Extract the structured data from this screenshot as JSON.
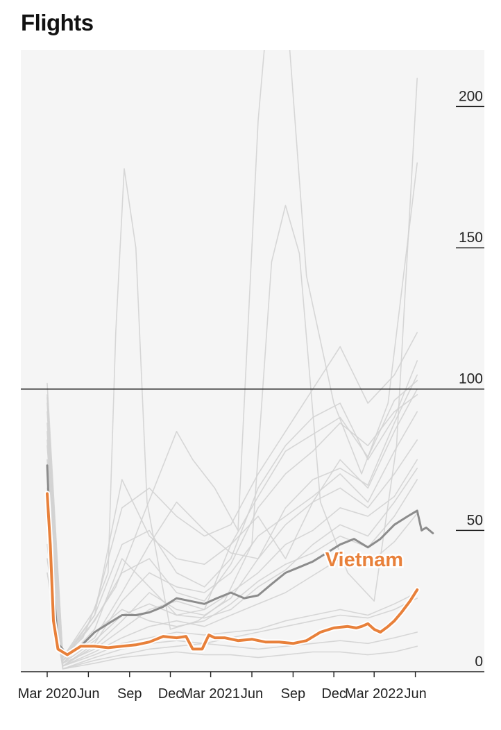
{
  "title": "Flights",
  "colors": {
    "background": "#f5f5f5",
    "highlight": "#e8803a",
    "average": "#8c8c8c",
    "other": "#d3d3d3",
    "reference": "#222222"
  },
  "chart_data": {
    "type": "line",
    "title": "Flights",
    "xlabel": "",
    "ylabel": "",
    "ylim": [
      0,
      220
    ],
    "yticks": [
      0,
      50,
      100,
      150,
      200
    ],
    "xticks": [
      "Mar 2020",
      "Jun",
      "Sep",
      "Dec",
      "Mar 2021",
      "Jun",
      "Sep",
      "Dec",
      "Mar 2022",
      "Jun"
    ],
    "x_domain": [
      "2020-03-01",
      "2022-07-15"
    ],
    "reference_line": 100,
    "grid": false,
    "legend": "none",
    "series": [
      {
        "name": "Vietnam",
        "role": "highlight",
        "x": [
          "2020-03-01",
          "2020-03-08",
          "2020-03-15",
          "2020-03-25",
          "2020-04-15",
          "2020-05-15",
          "2020-06-15",
          "2020-07-15",
          "2020-08-15",
          "2020-09-15",
          "2020-10-15",
          "2020-11-15",
          "2020-12-15",
          "2021-01-05",
          "2021-01-20",
          "2021-02-10",
          "2021-02-25",
          "2021-03-10",
          "2021-04-01",
          "2021-05-01",
          "2021-06-01",
          "2021-07-01",
          "2021-08-01",
          "2021-09-01",
          "2021-10-01",
          "2021-11-01",
          "2021-12-01",
          "2022-01-01",
          "2022-01-20",
          "2022-02-01",
          "2022-02-15",
          "2022-03-01",
          "2022-03-15",
          "2022-04-01",
          "2022-04-15",
          "2022-05-01",
          "2022-05-20",
          "2022-06-05"
        ],
        "y": [
          63,
          45,
          18,
          8,
          6,
          9,
          9,
          8.5,
          9,
          9.5,
          10.5,
          12.5,
          12,
          12.5,
          8,
          8,
          13,
          12,
          12,
          11,
          11.5,
          10.5,
          10.5,
          10,
          11,
          14,
          15.5,
          16,
          15.5,
          16,
          17,
          15,
          14,
          16,
          18,
          21,
          25,
          29
        ]
      },
      {
        "name": "",
        "role": "average",
        "x": [
          "2020-03-01",
          "2020-03-10",
          "2020-03-25",
          "2020-04-15",
          "2020-05-15",
          "2020-06-15",
          "2020-07-15",
          "2020-08-15",
          "2020-09-15",
          "2020-10-15",
          "2020-11-15",
          "2020-12-15",
          "2021-01-15",
          "2021-02-15",
          "2021-03-15",
          "2021-04-15",
          "2021-05-15",
          "2021-06-15",
          "2021-07-15",
          "2021-08-15",
          "2021-09-15",
          "2021-10-15",
          "2021-11-15",
          "2021-12-15",
          "2022-01-15",
          "2022-02-15",
          "2022-03-15",
          "2022-04-15",
          "2022-05-15",
          "2022-06-05",
          "2022-06-15",
          "2022-06-25",
          "2022-07-10"
        ],
        "y": [
          73,
          40,
          10,
          6,
          9,
          14,
          17,
          20,
          20,
          21,
          23,
          26,
          25,
          24,
          26,
          28,
          26,
          27,
          31,
          35,
          37,
          39,
          42,
          45,
          47,
          44,
          47,
          52,
          55,
          57,
          50,
          51,
          49
        ]
      },
      {
        "name": "",
        "role": "other",
        "x": [
          "2020-03-01",
          "2020-04-01",
          "2020-05-20",
          "2020-07-15",
          "2020-08-01",
          "2020-08-20",
          "2020-09-15",
          "2020-10-10",
          "2020-12-01",
          "2021-02-01",
          "2021-04-01",
          "2021-06-01",
          "2021-07-15",
          "2021-08-15",
          "2021-09-15",
          "2021-11-01",
          "2022-01-01",
          "2022-03-01",
          "2022-04-20",
          "2022-06-05"
        ],
        "y": [
          98,
          5,
          12,
          35,
          120,
          178,
          150,
          60,
          15,
          18,
          25,
          45,
          145,
          165,
          148,
          60,
          35,
          25,
          80,
          210
        ]
      },
      {
        "name": "",
        "role": "other",
        "x": [
          "2020-03-01",
          "2020-04-05",
          "2020-06-01",
          "2020-08-01",
          "2020-10-01",
          "2020-12-15",
          "2021-01-20",
          "2021-03-10",
          "2021-05-01",
          "2021-06-15",
          "2021-07-15",
          "2021-08-20",
          "2021-10-01",
          "2021-12-01",
          "2022-02-01",
          "2022-04-01",
          "2022-06-05"
        ],
        "y": [
          95,
          4,
          15,
          30,
          55,
          85,
          75,
          65,
          50,
          195,
          250,
          230,
          140,
          95,
          70,
          95,
          180
        ]
      },
      {
        "name": "",
        "role": "other",
        "x": [
          "2020-03-01",
          "2020-04-05",
          "2020-06-15",
          "2020-08-15",
          "2020-10-15",
          "2020-12-15",
          "2021-02-15",
          "2021-04-15",
          "2021-06-15",
          "2021-08-15",
          "2021-10-15",
          "2021-12-15",
          "2022-02-15",
          "2022-04-15",
          "2022-06-05"
        ],
        "y": [
          102,
          5,
          22,
          58,
          65,
          55,
          48,
          52,
          70,
          85,
          100,
          115,
          95,
          105,
          120
        ]
      },
      {
        "name": "",
        "role": "other",
        "x": [
          "2020-03-01",
          "2020-04-05",
          "2020-06-15",
          "2020-08-15",
          "2020-10-15",
          "2020-12-15",
          "2021-02-15",
          "2021-04-15",
          "2021-06-15",
          "2021-08-15",
          "2021-10-15",
          "2021-12-15",
          "2022-02-15",
          "2022-04-15",
          "2022-06-05"
        ],
        "y": [
          88,
          3,
          15,
          40,
          30,
          20,
          22,
          45,
          55,
          40,
          60,
          75,
          65,
          85,
          100
        ]
      },
      {
        "name": "",
        "role": "other",
        "x": [
          "2020-03-01",
          "2020-04-05",
          "2020-06-15",
          "2020-08-15",
          "2020-10-15",
          "2020-12-15",
          "2021-02-15",
          "2021-04-15",
          "2021-06-15",
          "2021-08-15",
          "2021-10-15",
          "2021-12-15",
          "2022-02-15",
          "2022-04-15",
          "2022-06-05"
        ],
        "y": [
          80,
          4,
          20,
          45,
          50,
          35,
          30,
          40,
          65,
          80,
          90,
          95,
          75,
          90,
          110
        ]
      },
      {
        "name": "",
        "role": "other",
        "x": [
          "2020-03-01",
          "2020-04-05",
          "2020-06-15",
          "2020-08-15",
          "2020-10-15",
          "2020-12-15",
          "2021-02-15",
          "2021-04-15",
          "2021-06-15",
          "2021-08-15",
          "2021-10-15",
          "2021-12-15",
          "2022-02-15",
          "2022-04-15",
          "2022-06-05"
        ],
        "y": [
          70,
          2,
          10,
          25,
          35,
          30,
          28,
          35,
          48,
          55,
          62,
          70,
          60,
          78,
          92
        ]
      },
      {
        "name": "",
        "role": "other",
        "x": [
          "2020-03-01",
          "2020-04-05",
          "2020-06-15",
          "2020-08-15",
          "2020-10-15",
          "2020-12-15",
          "2021-02-15",
          "2021-04-15",
          "2021-06-15",
          "2021-08-15",
          "2021-10-15",
          "2021-12-15",
          "2022-02-15",
          "2022-04-15",
          "2022-06-05"
        ],
        "y": [
          92,
          5,
          18,
          35,
          40,
          28,
          25,
          38,
          58,
          70,
          78,
          88,
          80,
          92,
          98
        ]
      },
      {
        "name": "",
        "role": "other",
        "x": [
          "2020-03-01",
          "2020-04-05",
          "2020-06-15",
          "2020-08-15",
          "2020-10-15",
          "2020-12-15",
          "2021-02-15",
          "2021-04-15",
          "2021-06-15",
          "2021-08-15",
          "2021-10-15",
          "2021-12-15",
          "2022-02-15",
          "2022-04-15",
          "2022-06-05"
        ],
        "y": [
          60,
          3,
          8,
          15,
          22,
          25,
          22,
          28,
          35,
          45,
          50,
          58,
          55,
          62,
          75
        ]
      },
      {
        "name": "",
        "role": "other",
        "x": [
          "2020-03-01",
          "2020-04-05",
          "2020-06-15",
          "2020-08-15",
          "2020-10-15",
          "2020-12-15",
          "2021-02-15",
          "2021-04-15",
          "2021-06-15",
          "2021-08-15",
          "2021-10-15",
          "2021-12-15",
          "2022-02-15",
          "2022-04-15",
          "2022-06-05"
        ],
        "y": [
          55,
          2,
          6,
          10,
          12,
          14,
          13,
          14,
          15,
          18,
          20,
          22,
          20,
          24,
          28
        ]
      },
      {
        "name": "",
        "role": "other",
        "x": [
          "2020-03-01",
          "2020-04-05",
          "2020-06-15",
          "2020-08-15",
          "2020-10-15",
          "2020-12-15",
          "2021-02-15",
          "2021-04-15",
          "2021-06-15",
          "2021-08-15",
          "2021-10-15",
          "2021-12-15",
          "2022-02-15",
          "2022-04-15",
          "2022-06-05"
        ],
        "y": [
          45,
          1,
          4,
          6,
          8,
          9,
          10,
          9,
          8,
          9,
          10,
          11,
          10,
          12,
          14
        ]
      },
      {
        "name": "",
        "role": "other",
        "x": [
          "2020-03-01",
          "2020-04-05",
          "2020-06-15",
          "2020-08-15",
          "2020-10-15",
          "2020-12-15",
          "2021-02-15",
          "2021-04-15",
          "2021-06-15",
          "2021-08-15",
          "2021-10-15",
          "2021-12-15",
          "2022-02-15",
          "2022-04-15",
          "2022-06-05"
        ],
        "y": [
          35,
          1,
          3,
          5,
          6,
          7,
          6,
          6,
          5,
          6,
          7,
          7,
          6,
          7,
          9
        ]
      },
      {
        "name": "",
        "role": "other",
        "x": [
          "2020-03-01",
          "2020-04-05",
          "2020-06-15",
          "2020-08-15",
          "2020-10-15",
          "2020-12-15",
          "2021-02-15",
          "2021-04-15",
          "2021-06-15",
          "2021-08-15",
          "2021-10-15",
          "2021-12-15",
          "2022-02-15",
          "2022-04-15",
          "2022-06-05"
        ],
        "y": [
          85,
          4,
          12,
          28,
          45,
          60,
          50,
          42,
          40,
          58,
          68,
          72,
          66,
          88,
          105
        ]
      },
      {
        "name": "",
        "role": "other",
        "x": [
          "2020-03-01",
          "2020-04-05",
          "2020-06-15",
          "2020-08-15",
          "2020-10-15",
          "2020-12-15",
          "2021-02-15",
          "2021-04-15",
          "2021-06-15",
          "2021-08-15",
          "2021-10-15",
          "2021-12-15",
          "2022-02-15",
          "2022-04-15",
          "2022-06-05"
        ],
        "y": [
          75,
          3,
          14,
          22,
          18,
          16,
          18,
          24,
          32,
          38,
          42,
          48,
          44,
          55,
          68
        ]
      },
      {
        "name": "",
        "role": "other",
        "x": [
          "2020-03-01",
          "2020-04-05",
          "2020-06-15",
          "2020-08-15",
          "2020-10-15",
          "2020-12-15",
          "2021-02-15",
          "2021-04-15",
          "2021-06-15",
          "2021-08-15",
          "2021-10-15",
          "2021-12-15",
          "2022-02-15",
          "2022-04-15",
          "2022-06-05"
        ],
        "y": [
          65,
          2,
          9,
          18,
          28,
          22,
          20,
          26,
          40,
          52,
          60,
          65,
          58,
          70,
          82
        ]
      },
      {
        "name": "",
        "role": "other",
        "x": [
          "2020-03-01",
          "2020-04-05",
          "2020-06-15",
          "2020-08-15",
          "2020-10-15",
          "2020-12-15",
          "2021-02-15",
          "2021-04-15",
          "2021-06-15",
          "2021-08-15",
          "2021-10-15",
          "2021-12-15",
          "2022-02-15",
          "2022-04-15",
          "2022-06-05"
        ],
        "y": [
          50,
          2,
          7,
          12,
          16,
          18,
          16,
          20,
          24,
          28,
          34,
          40,
          38,
          46,
          56
        ]
      },
      {
        "name": "",
        "role": "other",
        "x": [
          "2020-03-01",
          "2020-04-05",
          "2020-06-15",
          "2020-08-15",
          "2020-10-15",
          "2020-12-15",
          "2021-02-15",
          "2021-04-15",
          "2021-06-15",
          "2021-08-15",
          "2021-10-15",
          "2021-12-15",
          "2022-02-15",
          "2022-04-15",
          "2022-06-05"
        ],
        "y": [
          97,
          5,
          20,
          68,
          48,
          40,
          38,
          45,
          62,
          78,
          84,
          90,
          76,
          96,
          103
        ]
      },
      {
        "name": "",
        "role": "other",
        "x": [
          "2020-03-01",
          "2020-04-05",
          "2020-06-15",
          "2020-08-15",
          "2020-10-15",
          "2020-12-15",
          "2021-02-15",
          "2021-04-15",
          "2021-06-15",
          "2021-08-15",
          "2021-10-15",
          "2021-12-15",
          "2022-02-15",
          "2022-04-15",
          "2022-06-05"
        ],
        "y": [
          82,
          3,
          11,
          20,
          24,
          20,
          19,
          22,
          30,
          36,
          45,
          52,
          48,
          60,
          72
        ]
      },
      {
        "name": "",
        "role": "other",
        "x": [
          "2020-03-01",
          "2020-04-05",
          "2020-06-15",
          "2020-08-15",
          "2020-10-15",
          "2020-12-15",
          "2021-02-15",
          "2021-04-15",
          "2021-06-15",
          "2021-08-15",
          "2021-10-15",
          "2021-12-15",
          "2022-02-15",
          "2022-04-15",
          "2022-06-05"
        ],
        "y": [
          40,
          1,
          5,
          8,
          10,
          11,
          10,
          12,
          14,
          16,
          18,
          20,
          19,
          22,
          26
        ]
      }
    ]
  }
}
